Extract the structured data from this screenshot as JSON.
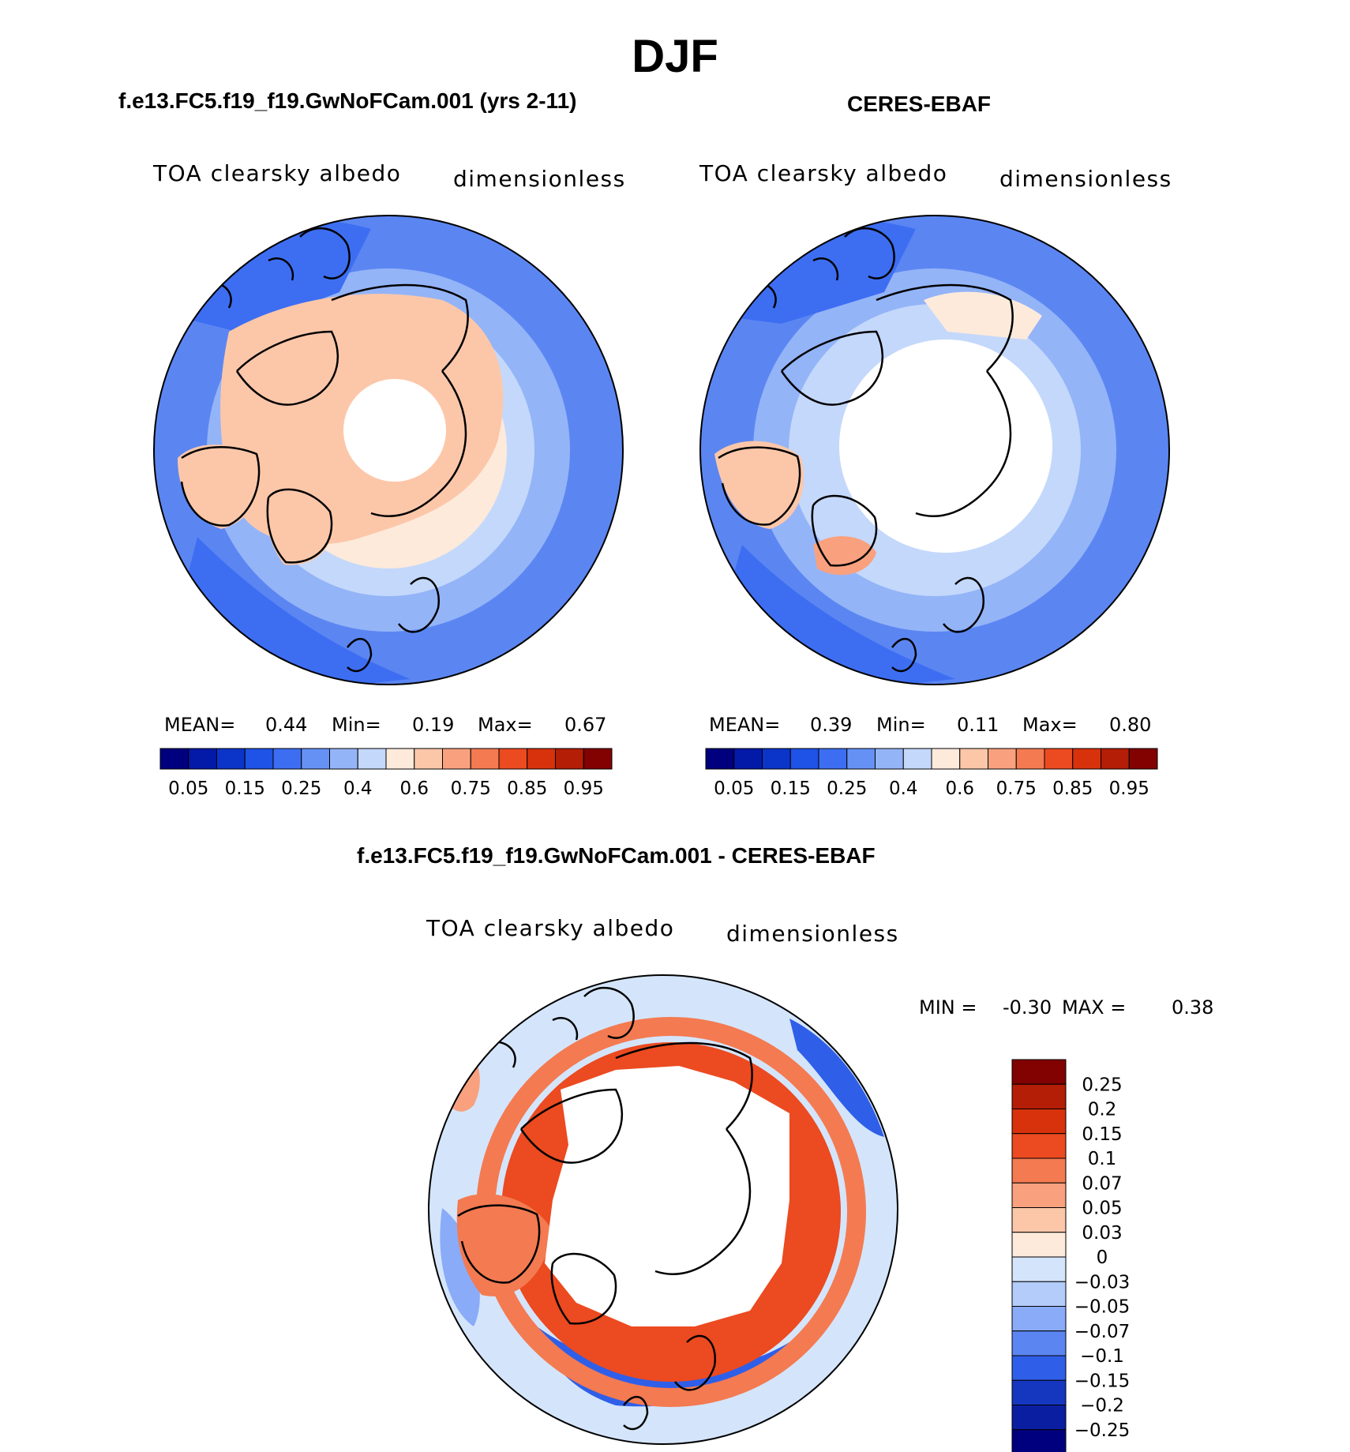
{
  "chart_data": {
    "type": "heatmap",
    "title": "DJF",
    "panels": [
      {
        "id": "model",
        "header": "f.e13.FC5.f19_f19.GwNoFCam.001 (yrs 2-11)",
        "variable": "TOA clearsky albedo",
        "units": "dimensionless",
        "stats": {
          "mean_label": "MEAN=",
          "mean": "0.44",
          "min_label": "Min=",
          "min": "0.19",
          "max_label": "Max=",
          "max": "0.67"
        },
        "projection": "north polar stereographic",
        "regions": {
          "central_arctic": "missing",
          "greenland": 0.65,
          "arctic_land": 0.6,
          "atlantic": 0.2,
          "pacific": 0.3
        }
      },
      {
        "id": "obs",
        "header": "CERES-EBAF",
        "variable": "TOA clearsky albedo",
        "units": "dimensionless",
        "stats": {
          "mean_label": "MEAN=",
          "mean": "0.39",
          "min_label": "Min=",
          "min": "0.11",
          "max_label": "Max=",
          "max": "0.80"
        },
        "projection": "north polar stereographic",
        "regions": {
          "central_arctic": "missing",
          "greenland": 0.6,
          "arctic_land": 0.5,
          "atlantic": 0.2,
          "pacific": 0.3
        }
      },
      {
        "id": "diff",
        "header": "f.e13.FC5.f19_f19.GwNoFCam.001 - CERES-EBAF",
        "variable": "TOA clearsky albedo",
        "units": "dimensionless",
        "stats": {
          "min_label": "MIN =",
          "min": "-0.30",
          "max_label": "MAX =",
          "max": "0.38"
        },
        "projection": "north polar stereographic",
        "regions": {
          "central_arctic": "missing",
          "arctic_ring": 0.2,
          "north_atlantic": -0.15,
          "midlatitudes": -0.03
        }
      }
    ],
    "abs_colorbar": {
      "tick_labels": [
        "0.05",
        "0.15",
        "0.25",
        "0.4",
        "0.6",
        "0.75",
        "0.85",
        "0.95"
      ],
      "colors": [
        "#00007e",
        "#0319a8",
        "#0b35c8",
        "#1f52e6",
        "#3d6ef2",
        "#6591f5",
        "#94b4f8",
        "#c4d8fb",
        "#fdeadb",
        "#fcc7a9",
        "#f9a17e",
        "#f47a51",
        "#ec4a20",
        "#d7320c",
        "#b41d06",
        "#820101"
      ]
    },
    "diff_colorbar": {
      "tick_labels": [
        "0.25",
        "0.2",
        "0.15",
        "0.1",
        "0.07",
        "0.05",
        "0.03",
        "0",
        "−0.03",
        "−0.05",
        "−0.07",
        "−0.1",
        "−0.15",
        "−0.2",
        "−0.25"
      ],
      "colors": [
        "#820101",
        "#b41d06",
        "#d7320c",
        "#ec4a20",
        "#f47a51",
        "#f9a17e",
        "#fcc7a9",
        "#fdeadb",
        "#d4e5fb",
        "#b3ccfa",
        "#8aabf7",
        "#5b86f2",
        "#2f5fe8",
        "#1537c0",
        "#0a1ea2",
        "#00007e"
      ]
    }
  }
}
